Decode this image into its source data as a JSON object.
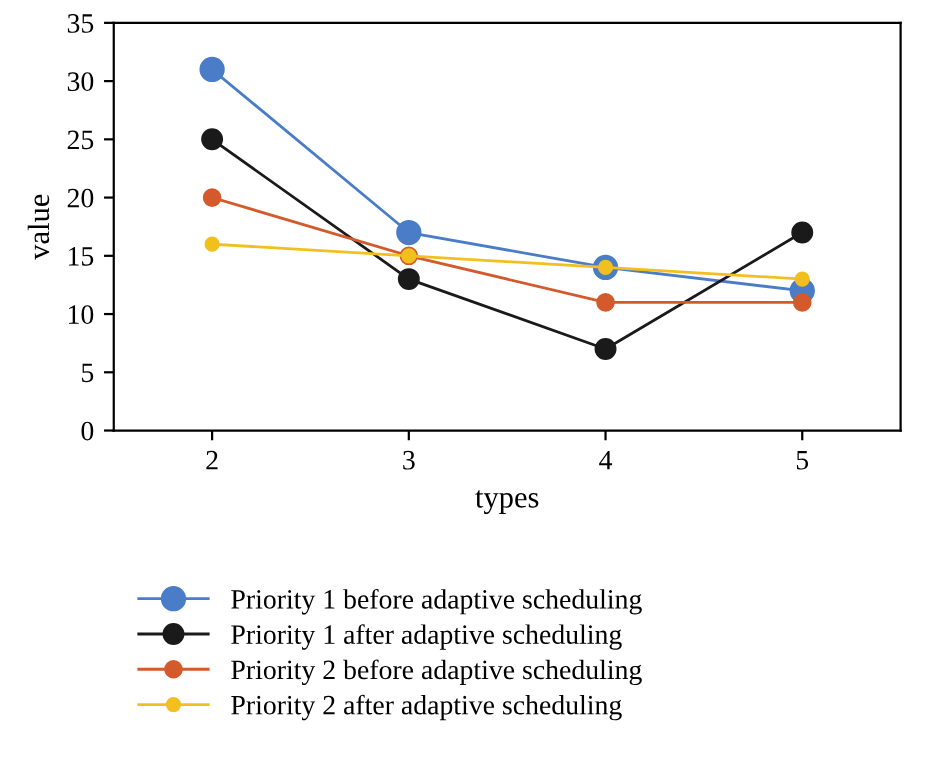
{
  "chart_data": {
    "type": "line",
    "xlabel": "types",
    "ylabel": "value",
    "categories": [
      "2",
      "3",
      "4",
      "5"
    ],
    "series": [
      {
        "name": "Priority 1 before adaptive scheduling",
        "color": "#4a7cc7",
        "values": [
          31,
          17,
          14,
          12
        ]
      },
      {
        "name": "Priority 1 after adaptive scheduling",
        "color": "#1a1a1a",
        "values": [
          25,
          13,
          7,
          17
        ]
      },
      {
        "name": "Priority 2 before adaptive scheduling",
        "color": "#d45a2c",
        "values": [
          20,
          15,
          11,
          11
        ]
      },
      {
        "name": "Priority 2 after adaptive scheduling",
        "color": "#f2c01e",
        "values": [
          16,
          15,
          14,
          13
        ]
      }
    ],
    "ylim": [
      0,
      35
    ],
    "yticks": [
      0,
      5,
      10,
      15,
      20,
      25,
      30,
      35
    ],
    "grid": false,
    "legend": "bottom",
    "marker": "circle",
    "line_style": "solid"
  }
}
